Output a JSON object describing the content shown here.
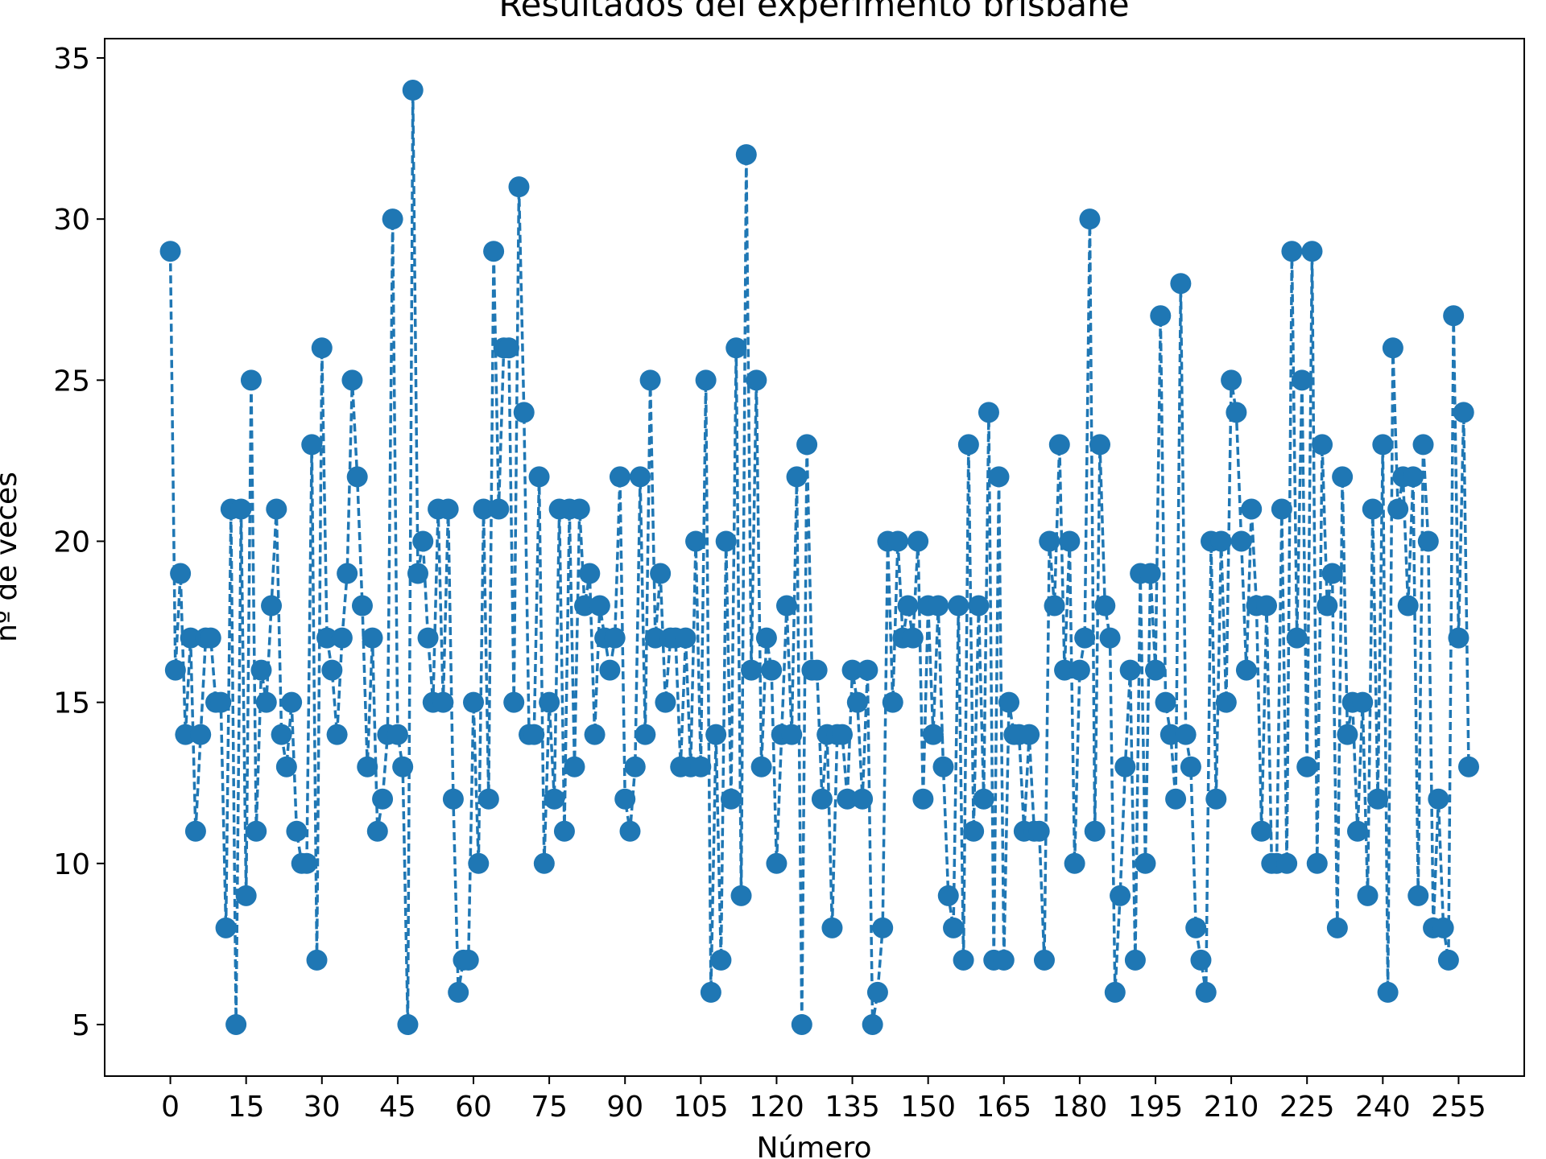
{
  "chart_data": {
    "type": "line",
    "title": "Resultados del experimento brisbane",
    "xlabel": "Número",
    "ylabel": "nº de veces",
    "xlim": [
      -13,
      268
    ],
    "ylim": [
      3.4,
      35.6
    ],
    "x_ticks": [
      0,
      15,
      30,
      45,
      60,
      75,
      90,
      105,
      120,
      135,
      150,
      165,
      180,
      195,
      210,
      225,
      240,
      255
    ],
    "y_ticks": [
      5,
      10,
      15,
      20,
      25,
      30,
      35
    ],
    "grid": false,
    "legend": "none",
    "colors": {
      "series": "#1f77b4",
      "axis": "#000000",
      "background": "#ffffff"
    },
    "line_style": "dashed",
    "marker": "circle",
    "series": [
      {
        "x_start": 0,
        "values": [
          29,
          16,
          19,
          14,
          17,
          11,
          14,
          17,
          17,
          15,
          15,
          8,
          21,
          5,
          21,
          9,
          25,
          11,
          16,
          15,
          18,
          21,
          14,
          13,
          15,
          11,
          10,
          10,
          23,
          7,
          26,
          17,
          16,
          14,
          17,
          19,
          25,
          22,
          18,
          13,
          17,
          11,
          12,
          14,
          30,
          14,
          13,
          5,
          34,
          19,
          20,
          17,
          15,
          21,
          15,
          21,
          12,
          6,
          7,
          7,
          15,
          10,
          21,
          12,
          29,
          21,
          26,
          26,
          15,
          31,
          24,
          14,
          14,
          22,
          10,
          15,
          12,
          21,
          11,
          21,
          13,
          21,
          18,
          19,
          14,
          18,
          17,
          16,
          17,
          22,
          12,
          11,
          13,
          22,
          14,
          25,
          17,
          19,
          15,
          17,
          17,
          13,
          17,
          13,
          20,
          13,
          25,
          6,
          14,
          7,
          20,
          12,
          26,
          9,
          32,
          16,
          25,
          13,
          17,
          16,
          10,
          14,
          18,
          14,
          22,
          5,
          23,
          16,
          16,
          12,
          14,
          8,
          14,
          14,
          12,
          16,
          15,
          12,
          16,
          5,
          6,
          8,
          20,
          15,
          20,
          17,
          18,
          17,
          20,
          12,
          18,
          14,
          18,
          13,
          9,
          8,
          18,
          7,
          23,
          11,
          18,
          12,
          24,
          7,
          22,
          7,
          15,
          14,
          14,
          11,
          14,
          11,
          11,
          7,
          20,
          18,
          23,
          16,
          20,
          10,
          16,
          17,
          30,
          11,
          23,
          18,
          17,
          6,
          9,
          13,
          16,
          7,
          19,
          10,
          19,
          16,
          27,
          15,
          14,
          12,
          28,
          14,
          13,
          8,
          7,
          6,
          20,
          12,
          20,
          15,
          25,
          24,
          20,
          16,
          21,
          18,
          11,
          18,
          10,
          10,
          21,
          10,
          29,
          17,
          25,
          13,
          29,
          10,
          23,
          18,
          19,
          8,
          22,
          14,
          15,
          11,
          15,
          9,
          21,
          12,
          23,
          6,
          26,
          21,
          22,
          18,
          22,
          9,
          23,
          20,
          8,
          12,
          8,
          7,
          27,
          17,
          24,
          13
        ]
      }
    ]
  }
}
